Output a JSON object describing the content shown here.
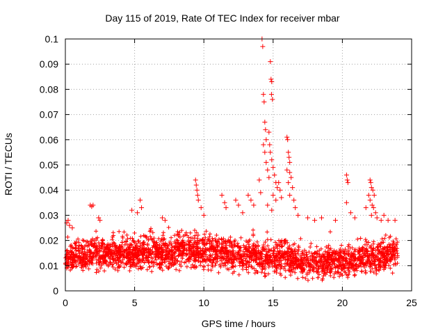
{
  "chart_data": {
    "type": "scatter",
    "title": "Day 115 of 2019, Rate Of TEC Index for receiver mbar",
    "xlabel": "GPS time / hours",
    "ylabel": "ROTI / TECUs",
    "xlim": [
      0,
      25
    ],
    "ylim": [
      0,
      0.1
    ],
    "x_ticks": [
      0,
      5,
      10,
      15,
      20,
      25
    ],
    "x_tick_labels": [
      "0",
      "5",
      "10",
      "15",
      "20",
      "25"
    ],
    "y_ticks": [
      0,
      0.01,
      0.02,
      0.03,
      0.04,
      0.05,
      0.06,
      0.07,
      0.08,
      0.09,
      0.1
    ],
    "y_tick_labels": [
      "0",
      "0.01",
      "0.02",
      "0.03",
      "0.04",
      "0.05",
      "0.06",
      "0.07",
      "0.08",
      "0.09",
      "0.1"
    ],
    "grid": true,
    "marker": "+",
    "series": [
      {
        "name": "ROTI",
        "color": "#ff0000",
        "bulk_band": {
          "x_range": [
            0,
            24
          ],
          "typical_min": 0.004,
          "typical_max": 0.022,
          "note": "dense cloud of samples every ~30 s across the day"
        },
        "points": [
          [
            0.1,
            0.027
          ],
          [
            0.2,
            0.028
          ],
          [
            0.3,
            0.026
          ],
          [
            0.5,
            0.025
          ],
          [
            1.8,
            0.034
          ],
          [
            1.9,
            0.0335
          ],
          [
            2.0,
            0.034
          ],
          [
            2.4,
            0.029
          ],
          [
            2.5,
            0.028
          ],
          [
            4.8,
            0.032
          ],
          [
            5.2,
            0.031
          ],
          [
            5.4,
            0.036
          ],
          [
            5.5,
            0.033
          ],
          [
            7.0,
            0.029
          ],
          [
            7.2,
            0.028
          ],
          [
            9.4,
            0.044
          ],
          [
            9.45,
            0.042
          ],
          [
            9.5,
            0.04
          ],
          [
            9.55,
            0.038
          ],
          [
            9.6,
            0.036
          ],
          [
            9.8,
            0.033
          ],
          [
            10.0,
            0.03
          ],
          [
            11.3,
            0.038
          ],
          [
            11.5,
            0.035
          ],
          [
            11.6,
            0.033
          ],
          [
            12.3,
            0.036
          ],
          [
            12.5,
            0.034
          ],
          [
            12.8,
            0.031
          ],
          [
            13.2,
            0.038
          ],
          [
            13.4,
            0.036
          ],
          [
            13.6,
            0.034
          ],
          [
            14.0,
            0.044
          ],
          [
            14.1,
            0.039
          ],
          [
            14.2,
            0.1
          ],
          [
            14.25,
            0.097
          ],
          [
            14.3,
            0.078
          ],
          [
            14.35,
            0.075
          ],
          [
            14.4,
            0.067
          ],
          [
            14.45,
            0.064
          ],
          [
            14.5,
            0.06
          ],
          [
            14.3,
            0.058
          ],
          [
            14.4,
            0.055
          ],
          [
            14.5,
            0.051
          ],
          [
            14.6,
            0.048
          ],
          [
            14.7,
            0.045
          ],
          [
            14.8,
            0.091
          ],
          [
            14.85,
            0.084
          ],
          [
            14.9,
            0.083
          ],
          [
            14.88,
            0.078
          ],
          [
            14.95,
            0.076
          ],
          [
            14.7,
            0.063
          ],
          [
            14.75,
            0.058
          ],
          [
            14.8,
            0.055
          ],
          [
            14.9,
            0.052
          ],
          [
            15.0,
            0.049
          ],
          [
            15.1,
            0.046
          ],
          [
            15.2,
            0.043
          ],
          [
            15.3,
            0.041
          ],
          [
            15.0,
            0.038
          ],
          [
            15.2,
            0.036
          ],
          [
            14.6,
            0.034
          ],
          [
            14.9,
            0.032
          ],
          [
            15.4,
            0.043
          ],
          [
            15.5,
            0.04
          ],
          [
            15.6,
            0.037
          ],
          [
            16.0,
            0.061
          ],
          [
            16.05,
            0.06
          ],
          [
            16.1,
            0.055
          ],
          [
            16.15,
            0.053
          ],
          [
            16.2,
            0.051
          ],
          [
            16.0,
            0.048
          ],
          [
            16.2,
            0.047
          ],
          [
            16.3,
            0.045
          ],
          [
            16.1,
            0.043
          ],
          [
            16.4,
            0.041
          ],
          [
            16.2,
            0.038
          ],
          [
            16.5,
            0.036
          ],
          [
            16.6,
            0.033
          ],
          [
            16.8,
            0.03
          ],
          [
            17.5,
            0.029
          ],
          [
            18.0,
            0.028
          ],
          [
            18.5,
            0.029
          ],
          [
            19.5,
            0.028
          ],
          [
            20.3,
            0.046
          ],
          [
            20.35,
            0.044
          ],
          [
            20.4,
            0.043
          ],
          [
            20.3,
            0.035
          ],
          [
            20.6,
            0.031
          ],
          [
            20.9,
            0.029
          ],
          [
            21.7,
            0.033
          ],
          [
            21.9,
            0.038
          ],
          [
            22.0,
            0.044
          ],
          [
            22.05,
            0.043
          ],
          [
            22.1,
            0.041
          ],
          [
            22.2,
            0.04
          ],
          [
            22.3,
            0.038
          ],
          [
            22.0,
            0.036
          ],
          [
            22.15,
            0.034
          ],
          [
            22.25,
            0.033
          ],
          [
            22.4,
            0.031
          ],
          [
            22.1,
            0.03
          ],
          [
            22.5,
            0.029
          ],
          [
            22.8,
            0.028
          ],
          [
            23.0,
            0.03
          ],
          [
            23.3,
            0.028
          ],
          [
            23.8,
            0.028
          ]
        ]
      }
    ]
  }
}
